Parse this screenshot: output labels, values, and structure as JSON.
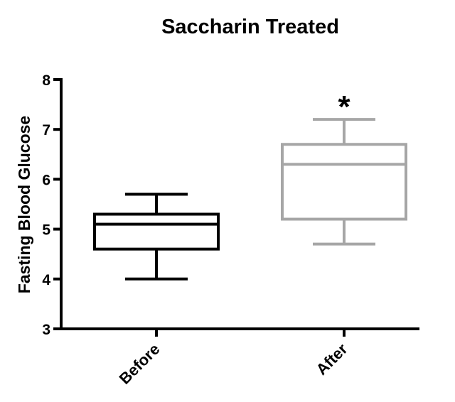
{
  "chart_data": {
    "type": "box",
    "title": "Saccharin Treated",
    "xlabel": "",
    "ylabel": "Fasting Blood Glucose",
    "ylim": [
      3,
      8
    ],
    "yticks": [
      3,
      4,
      5,
      6,
      7,
      8
    ],
    "grid": false,
    "legend": "none",
    "categories": [
      "Before",
      "After"
    ],
    "series": [
      {
        "name": "Before",
        "min": 4.0,
        "q1": 4.6,
        "median": 5.1,
        "q3": 5.3,
        "max": 5.7,
        "color": "#000000"
      },
      {
        "name": "After",
        "min": 4.7,
        "q1": 5.2,
        "median": 6.3,
        "q3": 6.7,
        "max": 7.2,
        "color": "#a6a6a6"
      }
    ],
    "annotations": [
      {
        "text": "*",
        "category": "After",
        "y": 7.7
      }
    ]
  }
}
